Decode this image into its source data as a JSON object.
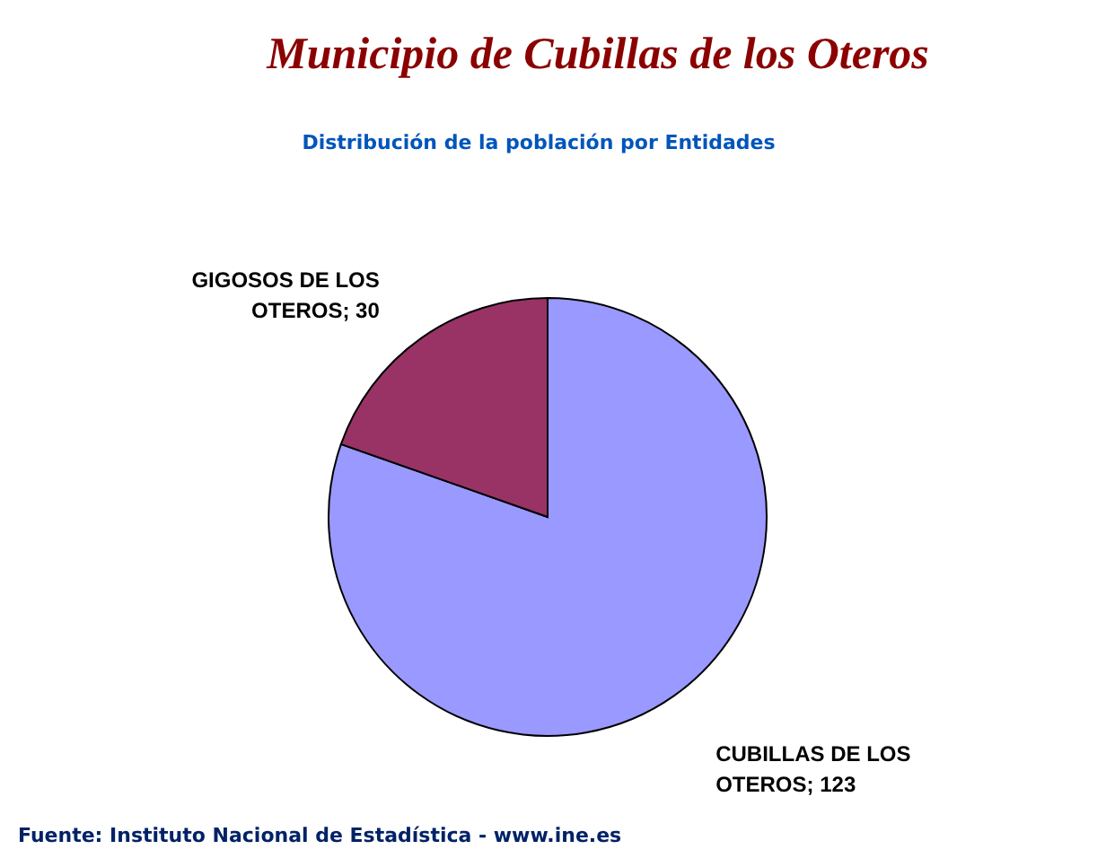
{
  "chart_data": {
    "type": "pie",
    "title": "Municipio de Cubillas de los Oteros",
    "subtitle": "Distribución de la población por Entidades",
    "categories": [
      "CUBILLAS DE LOS OTEROS",
      "GIGOSOS DE LOS OTEROS"
    ],
    "values": [
      123,
      30
    ],
    "colors": [
      "#9999ff",
      "#993366"
    ],
    "value_labels": [
      "; 123",
      "; 30"
    ],
    "annotations": [
      "Fuente: Instituto Nacional de Estadística - www.ine.es"
    ]
  }
}
